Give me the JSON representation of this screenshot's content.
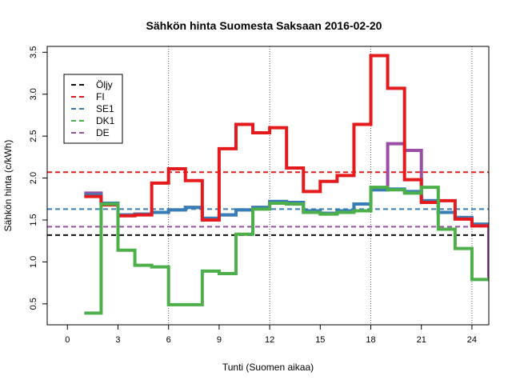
{
  "chart_data": {
    "type": "line",
    "title": "Sähkön hinta Suomesta Saksaan 2016-02-20",
    "xlabel": "Tunti (Suomen aikaa)",
    "ylabel": "Sähkön hinta (c/kWh)",
    "xlim": [
      -1.2,
      25
    ],
    "ylim": [
      0.25,
      3.57
    ],
    "xticks": [
      0,
      3,
      6,
      9,
      12,
      15,
      18,
      21,
      24
    ],
    "yticks": [
      0.5,
      1.0,
      1.5,
      2.0,
      2.5,
      3.0,
      3.5
    ],
    "ytick_labels": [
      "0.5",
      "1.0",
      "1.5",
      "2.0",
      "2.5",
      "3.0",
      "3.5"
    ],
    "vlines": [
      6,
      12,
      18,
      24
    ],
    "legend_position": "top-left",
    "hlines": [
      {
        "name": "Öljy",
        "value": 1.32,
        "color": "#111111"
      },
      {
        "name": "FI",
        "value": 2.07,
        "color": "#e41a1c"
      },
      {
        "name": "SE1",
        "value": 1.63,
        "color": "#377eb8"
      },
      {
        "name": "DE",
        "value": 1.42,
        "color": "#984ea3"
      }
    ],
    "legend": [
      {
        "name": "Öljy",
        "color": "#111111"
      },
      {
        "name": "FI",
        "color": "#e41a1c"
      },
      {
        "name": "SE1",
        "color": "#377eb8"
      },
      {
        "name": "DK1",
        "color": "#4daf4a"
      },
      {
        "name": "DE",
        "color": "#984ea3"
      }
    ],
    "series": [
      {
        "name": "DE",
        "color": "#984ea3",
        "values": [
          1.82,
          1.7,
          1.56,
          1.57,
          1.59,
          1.62,
          1.65,
          1.52,
          1.56,
          1.62,
          1.65,
          1.72,
          1.71,
          1.61,
          1.58,
          1.61,
          1.69,
          1.86,
          2.41,
          2.33,
          1.73,
          1.59,
          1.53,
          1.45,
          0.77
        ]
      },
      {
        "name": "SE1",
        "color": "#377eb8",
        "values": [
          1.8,
          1.7,
          1.56,
          1.57,
          1.59,
          1.62,
          1.65,
          1.52,
          1.56,
          1.62,
          1.65,
          1.72,
          1.71,
          1.61,
          1.58,
          1.61,
          1.69,
          1.86,
          1.87,
          1.84,
          1.73,
          1.59,
          1.53,
          1.45,
          1.45
        ]
      },
      {
        "name": "FI",
        "color": "#e41a1c",
        "values": [
          1.78,
          1.68,
          1.55,
          1.56,
          1.94,
          2.11,
          1.97,
          1.5,
          2.35,
          2.64,
          2.54,
          2.6,
          2.12,
          1.84,
          1.96,
          2.03,
          2.64,
          3.46,
          3.07,
          1.98,
          1.71,
          1.73,
          1.51,
          1.43,
          1.43
        ]
      },
      {
        "name": "DK1",
        "color": "#4daf4a",
        "values": [
          0.39,
          1.69,
          1.14,
          0.96,
          0.94,
          0.49,
          0.49,
          0.89,
          0.86,
          1.33,
          1.63,
          1.7,
          1.69,
          1.59,
          1.57,
          1.59,
          1.61,
          1.89,
          1.86,
          1.82,
          1.89,
          1.39,
          1.16,
          0.79,
          0.79
        ]
      }
    ]
  }
}
